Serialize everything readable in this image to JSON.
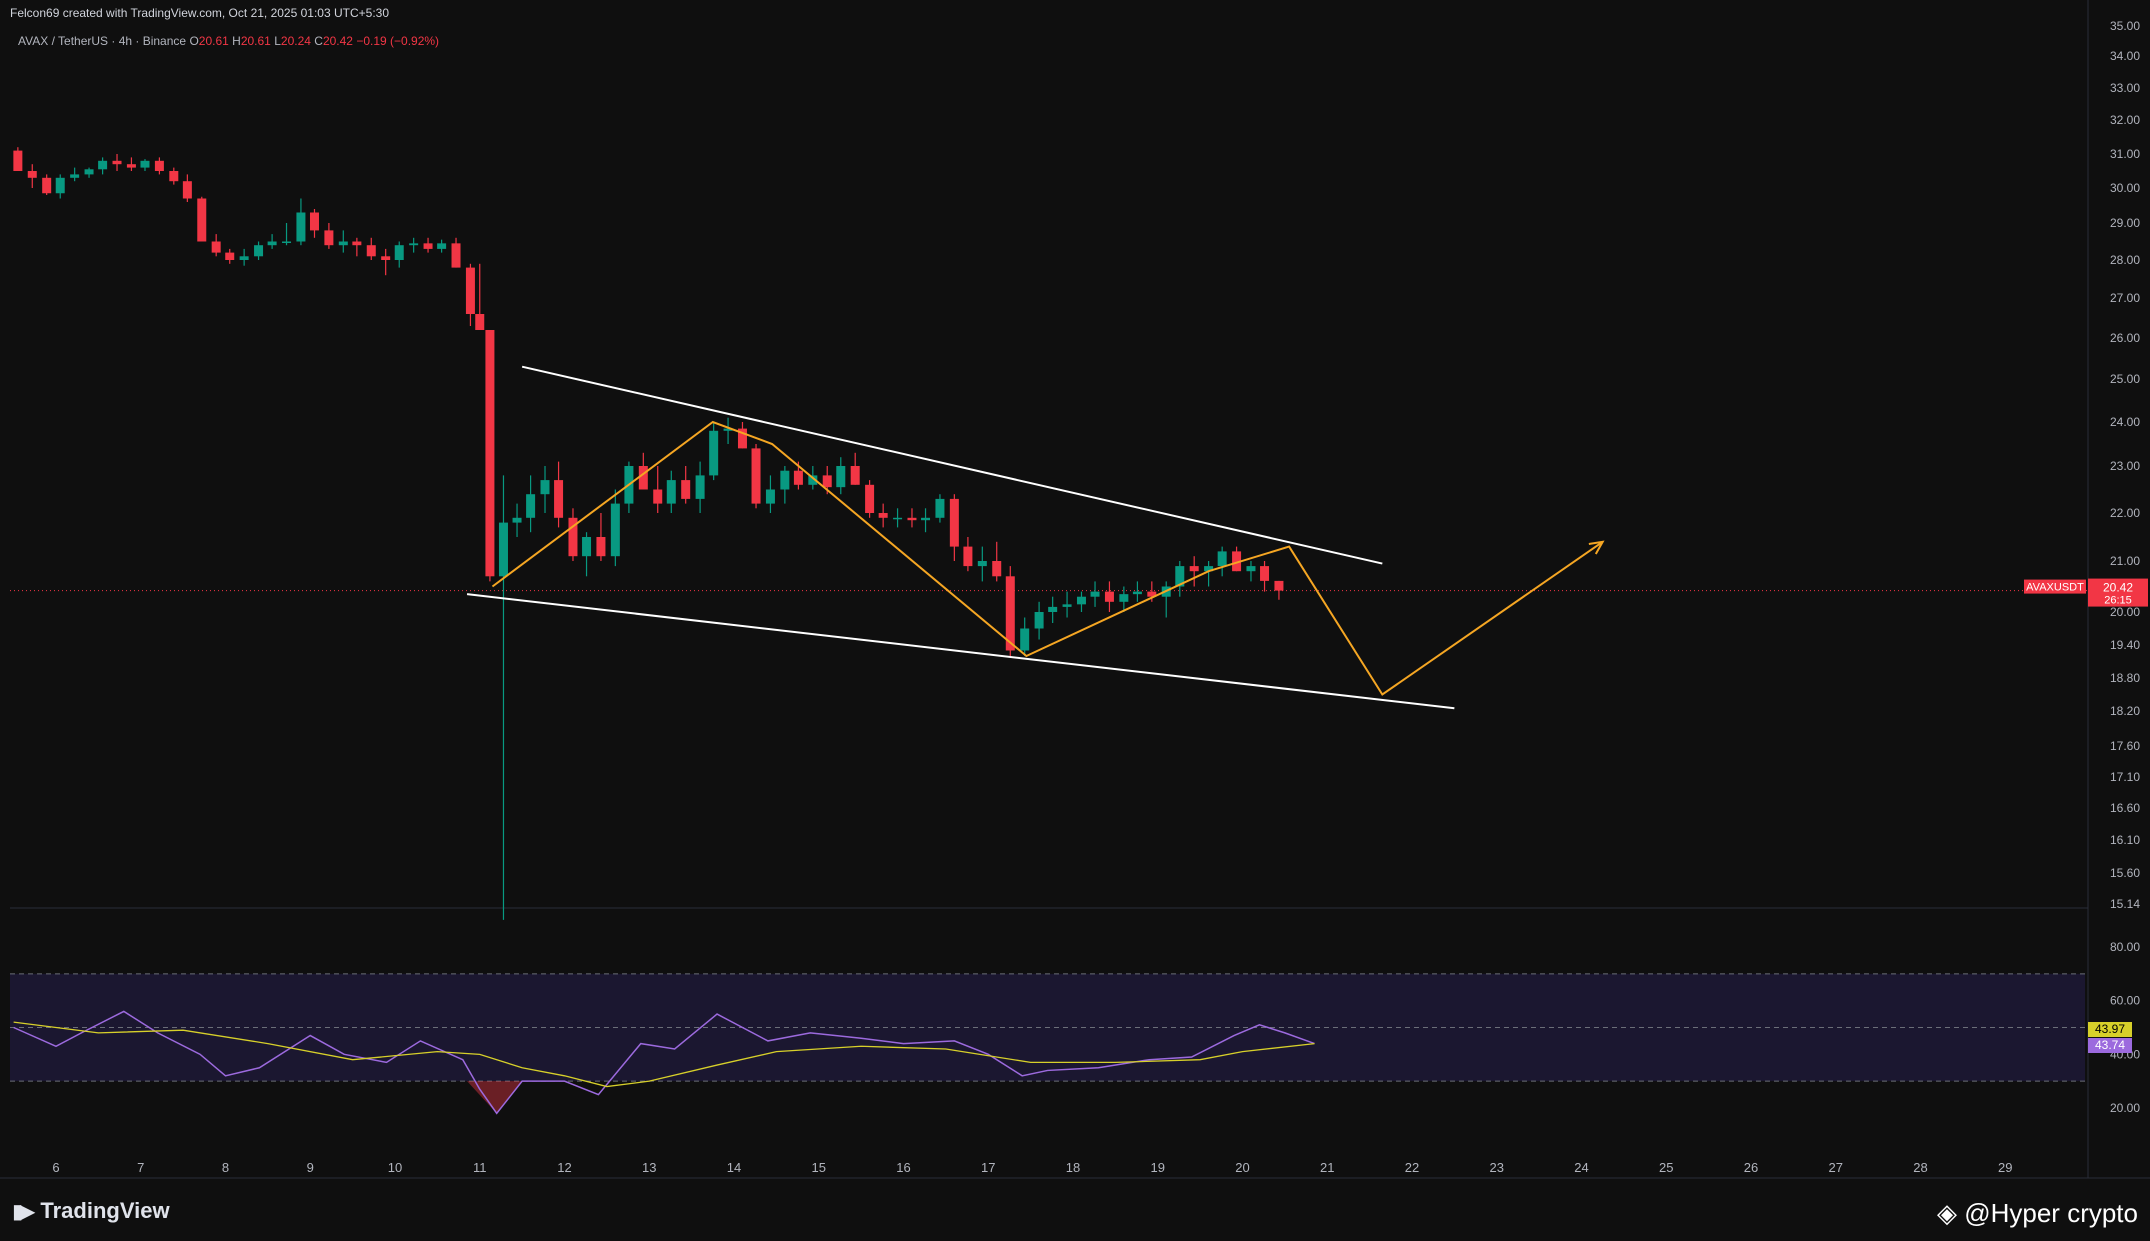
{
  "header": {
    "credit": "Felcon69 created with TradingView.com, Oct 21, 2025 01:03 UTC+5:30",
    "symbol": "AVAX / TetherUS · 4h · Binance",
    "ohlc": [
      {
        "k": "O",
        "v": "20.61"
      },
      {
        "k": "H",
        "v": "20.61"
      },
      {
        "k": "L",
        "v": "20.24"
      },
      {
        "k": "C",
        "v": "20.42"
      }
    ],
    "change": "−0.19 (−0.92%)"
  },
  "footer": {
    "brand": "TradingView",
    "watermark": "@Hyper crypto"
  },
  "colors": {
    "up": "#089981",
    "down": "#f23645",
    "pattern": "#ffffff",
    "path": "#f5a623",
    "rsi": "#9c6ade",
    "rsi_ma": "#d7d02a",
    "bg": "#0f0f0f"
  },
  "chart_data": {
    "type": "candlestick",
    "symbol_tag": "AVAXUSDT",
    "last_price": "20.42",
    "countdown": "26:15",
    "y_ticks": [
      "35.00",
      "34.00",
      "33.00",
      "32.00",
      "31.00",
      "30.00",
      "29.00",
      "28.00",
      "27.00",
      "26.00",
      "25.00",
      "24.00",
      "23.00",
      "22.00",
      "21.00",
      "20.00",
      "19.40",
      "18.80",
      "18.20",
      "17.60",
      "17.10",
      "16.60",
      "16.10",
      "15.60",
      "15.14"
    ],
    "x_labels": [
      {
        "label": "6",
        "d": 6
      },
      {
        "label": "7",
        "d": 7
      },
      {
        "label": "8",
        "d": 8
      },
      {
        "label": "9",
        "d": 9
      },
      {
        "label": "10",
        "d": 10
      },
      {
        "label": "11",
        "d": 11
      },
      {
        "label": "12",
        "d": 12
      },
      {
        "label": "13",
        "d": 13
      },
      {
        "label": "14",
        "d": 14
      },
      {
        "label": "15",
        "d": 15
      },
      {
        "label": "16",
        "d": 16
      },
      {
        "label": "17",
        "d": 17
      },
      {
        "label": "18",
        "d": 18
      },
      {
        "label": "19",
        "d": 19
      },
      {
        "label": "20",
        "d": 20
      },
      {
        "label": "21",
        "d": 21
      },
      {
        "label": "22",
        "d": 22
      },
      {
        "label": "23",
        "d": 23
      },
      {
        "label": "24",
        "d": 24
      },
      {
        "label": "25",
        "d": 25
      },
      {
        "label": "26",
        "d": 26
      },
      {
        "label": "27",
        "d": 27
      },
      {
        "label": "28",
        "d": 28
      },
      {
        "label": "29",
        "d": 29
      }
    ],
    "candles": [
      [
        5.55,
        31.1,
        31.2,
        30.5,
        30.5
      ],
      [
        5.72,
        30.5,
        30.7,
        30.0,
        30.3
      ],
      [
        5.89,
        30.3,
        30.4,
        29.8,
        29.85
      ],
      [
        6.05,
        29.85,
        30.4,
        29.7,
        30.3
      ],
      [
        6.22,
        30.3,
        30.6,
        30.2,
        30.4
      ],
      [
        6.39,
        30.4,
        30.6,
        30.3,
        30.55
      ],
      [
        6.55,
        30.55,
        30.9,
        30.4,
        30.8
      ],
      [
        6.72,
        30.8,
        31.0,
        30.5,
        30.7
      ],
      [
        6.89,
        30.7,
        30.9,
        30.5,
        30.6
      ],
      [
        7.05,
        30.6,
        30.85,
        30.5,
        30.8
      ],
      [
        7.22,
        30.8,
        30.9,
        30.4,
        30.5
      ],
      [
        7.39,
        30.5,
        30.6,
        30.1,
        30.2
      ],
      [
        7.55,
        30.2,
        30.4,
        29.6,
        29.7
      ],
      [
        7.72,
        29.7,
        29.75,
        28.5,
        28.5
      ],
      [
        7.89,
        28.5,
        28.7,
        28.1,
        28.2
      ],
      [
        8.05,
        28.2,
        28.3,
        27.9,
        28.0
      ],
      [
        8.22,
        28.0,
        28.3,
        27.85,
        28.1
      ],
      [
        8.39,
        28.1,
        28.5,
        28.0,
        28.4
      ],
      [
        8.55,
        28.4,
        28.7,
        28.3,
        28.5
      ],
      [
        8.72,
        28.5,
        29.0,
        28.4,
        28.5
      ],
      [
        8.89,
        28.5,
        29.7,
        28.4,
        29.3
      ],
      [
        9.05,
        29.3,
        29.4,
        28.6,
        28.8
      ],
      [
        9.22,
        28.8,
        29.0,
        28.3,
        28.4
      ],
      [
        9.39,
        28.4,
        28.8,
        28.2,
        28.5
      ],
      [
        9.55,
        28.5,
        28.6,
        28.1,
        28.4
      ],
      [
        9.72,
        28.4,
        28.6,
        28.0,
        28.1
      ],
      [
        9.89,
        28.1,
        28.3,
        27.6,
        28.0
      ],
      [
        10.05,
        28.0,
        28.5,
        27.8,
        28.4
      ],
      [
        10.22,
        28.4,
        28.6,
        28.2,
        28.45
      ],
      [
        10.39,
        28.45,
        28.6,
        28.2,
        28.3
      ],
      [
        10.55,
        28.3,
        28.55,
        28.2,
        28.45
      ],
      [
        10.72,
        28.45,
        28.6,
        27.8,
        27.8
      ],
      [
        10.89,
        27.8,
        27.9,
        26.3,
        26.6
      ],
      [
        11.0,
        26.6,
        27.9,
        26.2,
        26.2
      ],
      [
        11.12,
        26.2,
        26.2,
        20.6,
        20.7
      ],
      [
        11.28,
        20.7,
        22.8,
        14.9,
        21.8
      ],
      [
        11.44,
        21.8,
        22.2,
        21.5,
        21.9
      ],
      [
        11.6,
        21.9,
        22.8,
        21.6,
        22.4
      ],
      [
        11.77,
        22.4,
        23.0,
        22.0,
        22.7
      ],
      [
        11.93,
        22.7,
        23.1,
        21.7,
        21.9
      ],
      [
        12.1,
        21.9,
        22.1,
        21.0,
        21.1
      ],
      [
        12.26,
        21.1,
        21.6,
        20.7,
        21.5
      ],
      [
        12.43,
        21.5,
        22.0,
        21.0,
        21.1
      ],
      [
        12.6,
        21.1,
        22.5,
        20.9,
        22.2
      ],
      [
        12.76,
        22.2,
        23.1,
        22.0,
        23.0
      ],
      [
        12.93,
        23.0,
        23.3,
        22.5,
        22.5
      ],
      [
        13.1,
        22.5,
        23.0,
        22.0,
        22.2
      ],
      [
        13.26,
        22.2,
        22.9,
        22.0,
        22.7
      ],
      [
        13.43,
        22.7,
        23.0,
        22.2,
        22.3
      ],
      [
        13.6,
        22.3,
        23.1,
        22.0,
        22.8
      ],
      [
        13.76,
        22.8,
        24.0,
        22.7,
        23.8
      ],
      [
        13.93,
        23.8,
        24.1,
        23.5,
        23.85
      ],
      [
        14.1,
        23.85,
        24.0,
        23.4,
        23.4
      ],
      [
        14.26,
        23.4,
        23.5,
        22.1,
        22.2
      ],
      [
        14.43,
        22.2,
        22.8,
        22.0,
        22.5
      ],
      [
        14.6,
        22.5,
        23.0,
        22.2,
        22.9
      ],
      [
        14.76,
        22.9,
        23.1,
        22.5,
        22.6
      ],
      [
        14.93,
        22.6,
        23.0,
        22.5,
        22.8
      ],
      [
        15.1,
        22.8,
        23.0,
        22.4,
        22.55
      ],
      [
        15.26,
        22.55,
        23.2,
        22.4,
        23.0
      ],
      [
        15.43,
        23.0,
        23.3,
        22.6,
        22.6
      ],
      [
        15.6,
        22.6,
        22.7,
        21.9,
        22.0
      ],
      [
        15.76,
        22.0,
        22.2,
        21.7,
        21.9
      ],
      [
        15.93,
        21.9,
        22.1,
        21.7,
        21.9
      ],
      [
        16.1,
        21.9,
        22.1,
        21.7,
        21.85
      ],
      [
        16.26,
        21.85,
        22.1,
        21.6,
        21.9
      ],
      [
        16.43,
        21.9,
        22.4,
        21.8,
        22.3
      ],
      [
        16.6,
        22.3,
        22.4,
        21.0,
        21.3
      ],
      [
        16.76,
        21.3,
        21.5,
        20.8,
        20.9
      ],
      [
        16.93,
        20.9,
        21.3,
        20.6,
        21.0
      ],
      [
        17.1,
        21.0,
        21.4,
        20.6,
        20.7
      ],
      [
        17.26,
        20.7,
        20.9,
        19.2,
        19.3
      ],
      [
        17.43,
        19.3,
        19.9,
        19.2,
        19.7
      ],
      [
        17.6,
        19.7,
        20.2,
        19.5,
        20.0
      ],
      [
        17.76,
        20.0,
        20.3,
        19.8,
        20.1
      ],
      [
        17.93,
        20.1,
        20.4,
        19.9,
        20.15
      ],
      [
        18.1,
        20.15,
        20.4,
        20.0,
        20.3
      ],
      [
        18.26,
        20.3,
        20.6,
        20.1,
        20.4
      ],
      [
        18.43,
        20.4,
        20.6,
        20.0,
        20.2
      ],
      [
        18.6,
        20.2,
        20.5,
        20.0,
        20.35
      ],
      [
        18.76,
        20.35,
        20.6,
        20.2,
        20.4
      ],
      [
        18.93,
        20.4,
        20.6,
        20.2,
        20.3
      ],
      [
        19.1,
        20.3,
        20.6,
        19.9,
        20.5
      ],
      [
        19.26,
        20.5,
        21.0,
        20.3,
        20.9
      ],
      [
        19.43,
        20.9,
        21.1,
        20.5,
        20.8
      ],
      [
        19.6,
        20.8,
        21.0,
        20.5,
        20.9
      ],
      [
        19.76,
        20.9,
        21.3,
        20.7,
        21.2
      ],
      [
        19.93,
        21.2,
        21.3,
        20.8,
        20.8
      ],
      [
        20.1,
        20.8,
        21.0,
        20.6,
        20.9
      ],
      [
        20.26,
        20.9,
        21.0,
        20.4,
        20.61
      ],
      [
        20.43,
        20.61,
        20.61,
        20.24,
        20.42
      ]
    ],
    "pattern_lines": [
      {
        "from": [
          11.5,
          25.3
        ],
        "to": [
          21.65,
          20.95
        ]
      },
      {
        "from": [
          10.85,
          20.35
        ],
        "to": [
          22.5,
          18.25
        ]
      }
    ],
    "projection_path": [
      [
        11.15,
        20.5
      ],
      [
        13.75,
        24.0
      ],
      [
        14.45,
        23.5
      ],
      [
        17.45,
        19.2
      ],
      [
        19.6,
        20.8
      ],
      [
        20.55,
        21.3
      ],
      [
        21.65,
        18.5
      ],
      [
        24.25,
        21.4
      ]
    ],
    "rsi": {
      "ticks": [
        "80.00",
        "60.00",
        "40.00",
        "20.00"
      ],
      "overbought": 70,
      "oversold": 30,
      "mid": 50,
      "rsi_value": "43.74",
      "ma_value": "43.97",
      "rsi_points": [
        [
          5.5,
          50
        ],
        [
          6.0,
          43
        ],
        [
          6.3,
          48
        ],
        [
          6.8,
          56
        ],
        [
          7.2,
          48
        ],
        [
          7.7,
          40
        ],
        [
          8.0,
          32
        ],
        [
          8.4,
          35
        ],
        [
          9.0,
          47
        ],
        [
          9.4,
          40
        ],
        [
          9.9,
          37
        ],
        [
          10.3,
          45
        ],
        [
          10.8,
          38
        ],
        [
          11.0,
          27
        ],
        [
          11.2,
          18
        ],
        [
          11.5,
          30
        ],
        [
          12.0,
          30
        ],
        [
          12.4,
          25
        ],
        [
          12.9,
          44
        ],
        [
          13.3,
          42
        ],
        [
          13.8,
          55
        ],
        [
          14.4,
          45
        ],
        [
          14.9,
          48
        ],
        [
          15.5,
          46
        ],
        [
          16.0,
          44
        ],
        [
          16.6,
          45
        ],
        [
          17.0,
          40
        ],
        [
          17.4,
          32
        ],
        [
          17.7,
          34
        ],
        [
          18.3,
          35
        ],
        [
          18.9,
          38
        ],
        [
          19.4,
          39
        ],
        [
          19.9,
          47
        ],
        [
          20.2,
          51
        ],
        [
          20.5,
          48
        ],
        [
          20.85,
          44
        ]
      ],
      "ma_points": [
        [
          5.5,
          52
        ],
        [
          6.5,
          48
        ],
        [
          7.5,
          49
        ],
        [
          8.5,
          44
        ],
        [
          9.5,
          38
        ],
        [
          10.5,
          41
        ],
        [
          11.0,
          40
        ],
        [
          11.5,
          35
        ],
        [
          12.0,
          32
        ],
        [
          12.5,
          28
        ],
        [
          13.0,
          30
        ],
        [
          13.8,
          36
        ],
        [
          14.5,
          41
        ],
        [
          15.5,
          43
        ],
        [
          16.5,
          42
        ],
        [
          17.5,
          37
        ],
        [
          18.5,
          37
        ],
        [
          19.5,
          38
        ],
        [
          20.0,
          41
        ],
        [
          20.85,
          44
        ]
      ]
    }
  }
}
